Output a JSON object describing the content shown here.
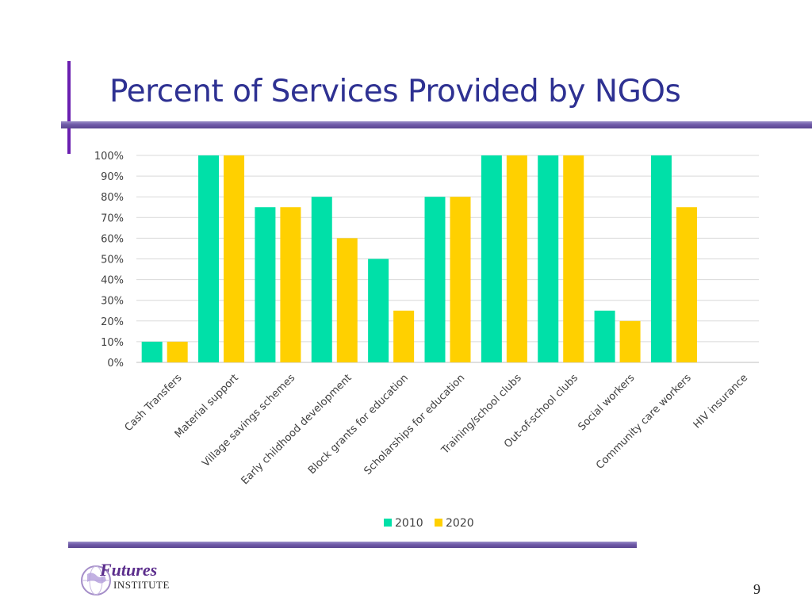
{
  "slide": {
    "title": "Percent of Services Provided by NGOs",
    "page_number": "9"
  },
  "logo": {
    "name": "Futures",
    "subtitle": "INSTITUTE"
  },
  "colors": {
    "title": "#2e3192",
    "accent": "#6a1fb0",
    "series_2010": "#00e0a8",
    "series_2020": "#ffd000"
  },
  "chart_data": {
    "type": "bar",
    "title": "",
    "xlabel": "",
    "ylabel": "",
    "ylim": [
      0,
      100
    ],
    "y_ticks": [
      "0%",
      "10%",
      "20%",
      "30%",
      "40%",
      "50%",
      "60%",
      "70%",
      "80%",
      "90%",
      "100%"
    ],
    "grid": true,
    "legend_position": "bottom",
    "categories": [
      "Cash Transfers",
      "Material support",
      "Village savings schemes",
      "Early childhood development",
      "Block grants for education",
      "Scholarships for education",
      "Training/school clubs",
      "Out-of-school clubs",
      "Social workers",
      "Community care workers",
      "HIV insurance"
    ],
    "series": [
      {
        "name": "2010",
        "color": "#00e0a8",
        "values": [
          10,
          100,
          75,
          80,
          50,
          80,
          100,
          100,
          25,
          100,
          0
        ]
      },
      {
        "name": "2020",
        "color": "#ffd000",
        "values": [
          10,
          100,
          75,
          60,
          25,
          80,
          100,
          100,
          20,
          75,
          0
        ]
      }
    ]
  }
}
